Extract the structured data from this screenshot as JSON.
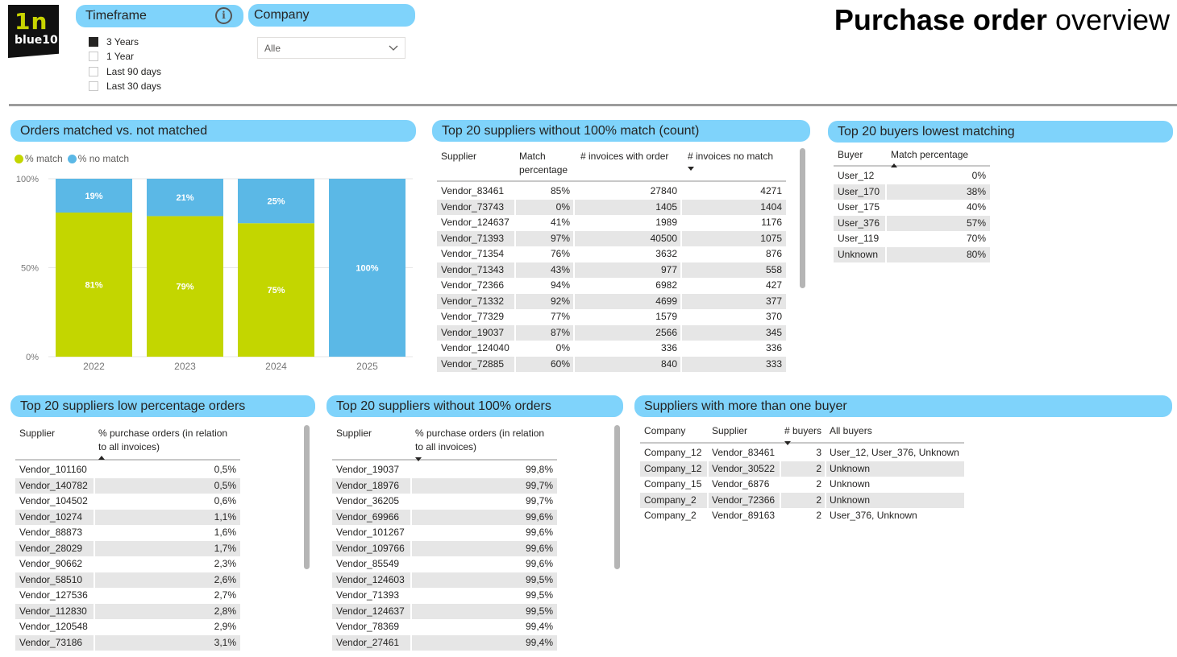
{
  "logo": {
    "mark": "1n",
    "text": "blue10"
  },
  "title": {
    "bold": "Purchase order",
    "rest": " overview"
  },
  "timeframe": {
    "label": "Timeframe",
    "options": [
      {
        "label": "3 Years",
        "checked": true
      },
      {
        "label": "1 Year",
        "checked": false
      },
      {
        "label": "Last 90 days",
        "checked": false
      },
      {
        "label": "Last 30 days",
        "checked": false
      }
    ]
  },
  "company": {
    "label": "Company",
    "selected": "Alle"
  },
  "colors": {
    "accent": "#7fd3fb",
    "match": "#c3d600",
    "no_match": "#5bb8e6"
  },
  "orders_chart": {
    "title": "Orders matched vs. not matched",
    "legend": {
      "match": "% match",
      "no_match": "% no match"
    },
    "y_ticks": [
      "100%",
      "50%",
      "0%"
    ]
  },
  "chart_data": {
    "type": "bar",
    "stacked": true,
    "categories": [
      "2022",
      "2023",
      "2024",
      "2025"
    ],
    "series": [
      {
        "name": "% match",
        "values": [
          81,
          79,
          75,
          0
        ],
        "labels": [
          "81%",
          "79%",
          "75%",
          ""
        ]
      },
      {
        "name": "% no match",
        "values": [
          19,
          21,
          25,
          100
        ],
        "labels": [
          "19%",
          "21%",
          "25%",
          "100%"
        ]
      }
    ],
    "ylim": [
      0,
      100
    ],
    "grid": true,
    "legend": "top-left"
  },
  "suppliers_count": {
    "title": "Top 20 suppliers without 100% match (count)",
    "headers": [
      "Supplier",
      "Match percentage",
      "# invoices with order",
      "# invoices no match"
    ],
    "rows": [
      [
        "Vendor_83461",
        "85%",
        "27840",
        "4271"
      ],
      [
        "Vendor_73743",
        "0%",
        "1405",
        "1404"
      ],
      [
        "Vendor_124637",
        "41%",
        "1989",
        "1176"
      ],
      [
        "Vendor_71393",
        "97%",
        "40500",
        "1075"
      ],
      [
        "Vendor_71354",
        "76%",
        "3632",
        "876"
      ],
      [
        "Vendor_71343",
        "43%",
        "977",
        "558"
      ],
      [
        "Vendor_72366",
        "94%",
        "6982",
        "427"
      ],
      [
        "Vendor_71332",
        "92%",
        "4699",
        "377"
      ],
      [
        "Vendor_77329",
        "77%",
        "1579",
        "370"
      ],
      [
        "Vendor_19037",
        "87%",
        "2566",
        "345"
      ],
      [
        "Vendor_124040",
        "0%",
        "336",
        "336"
      ],
      [
        "Vendor_72885",
        "60%",
        "840",
        "333"
      ]
    ]
  },
  "buyers": {
    "title": "Top 20 buyers lowest matching",
    "headers": [
      "Buyer",
      "Match percentage"
    ],
    "rows": [
      [
        "User_12",
        "0%"
      ],
      [
        "User_170",
        "38%"
      ],
      [
        "User_175",
        "40%"
      ],
      [
        "User_376",
        "57%"
      ],
      [
        "User_119",
        "70%"
      ],
      [
        "Unknown",
        "80%"
      ]
    ]
  },
  "low_pct": {
    "title": "Top 20 suppliers low percentage orders",
    "headers": [
      "Supplier",
      "% purchase orders (in relation to all invoices)"
    ],
    "rows": [
      [
        "Vendor_101160",
        "0,5%"
      ],
      [
        "Vendor_140782",
        "0,5%"
      ],
      [
        "Vendor_104502",
        "0,6%"
      ],
      [
        "Vendor_10274",
        "1,1%"
      ],
      [
        "Vendor_88873",
        "1,6%"
      ],
      [
        "Vendor_28029",
        "1,7%"
      ],
      [
        "Vendor_90662",
        "2,3%"
      ],
      [
        "Vendor_58510",
        "2,6%"
      ],
      [
        "Vendor_127536",
        "2,7%"
      ],
      [
        "Vendor_112830",
        "2,8%"
      ],
      [
        "Vendor_120548",
        "2,9%"
      ],
      [
        "Vendor_73186",
        "3,1%"
      ]
    ]
  },
  "without_orders": {
    "title": "Top 20 suppliers without 100% orders",
    "headers": [
      "Supplier",
      "% purchase orders (in relation to all invoices)"
    ],
    "rows": [
      [
        "Vendor_19037",
        "99,8%"
      ],
      [
        "Vendor_18976",
        "99,7%"
      ],
      [
        "Vendor_36205",
        "99,7%"
      ],
      [
        "Vendor_69966",
        "99,6%"
      ],
      [
        "Vendor_101267",
        "99,6%"
      ],
      [
        "Vendor_109766",
        "99,6%"
      ],
      [
        "Vendor_85549",
        "99,6%"
      ],
      [
        "Vendor_124603",
        "99,5%"
      ],
      [
        "Vendor_71393",
        "99,5%"
      ],
      [
        "Vendor_124637",
        "99,5%"
      ],
      [
        "Vendor_78369",
        "99,4%"
      ],
      [
        "Vendor_27461",
        "99,4%"
      ]
    ]
  },
  "multi_buyer": {
    "title": "Suppliers with more than one buyer",
    "headers": [
      "Company",
      "Supplier",
      "# buyers",
      "All buyers"
    ],
    "rows": [
      [
        "Company_12",
        "Vendor_83461",
        "3",
        "User_12, User_376, Unknown"
      ],
      [
        "Company_12",
        "Vendor_30522",
        "2",
        "Unknown"
      ],
      [
        "Company_15",
        "Vendor_6876",
        "2",
        "Unknown"
      ],
      [
        "Company_2",
        "Vendor_72366",
        "2",
        "Unknown"
      ],
      [
        "Company_2",
        "Vendor_89163",
        "2",
        "User_376, Unknown"
      ]
    ]
  }
}
